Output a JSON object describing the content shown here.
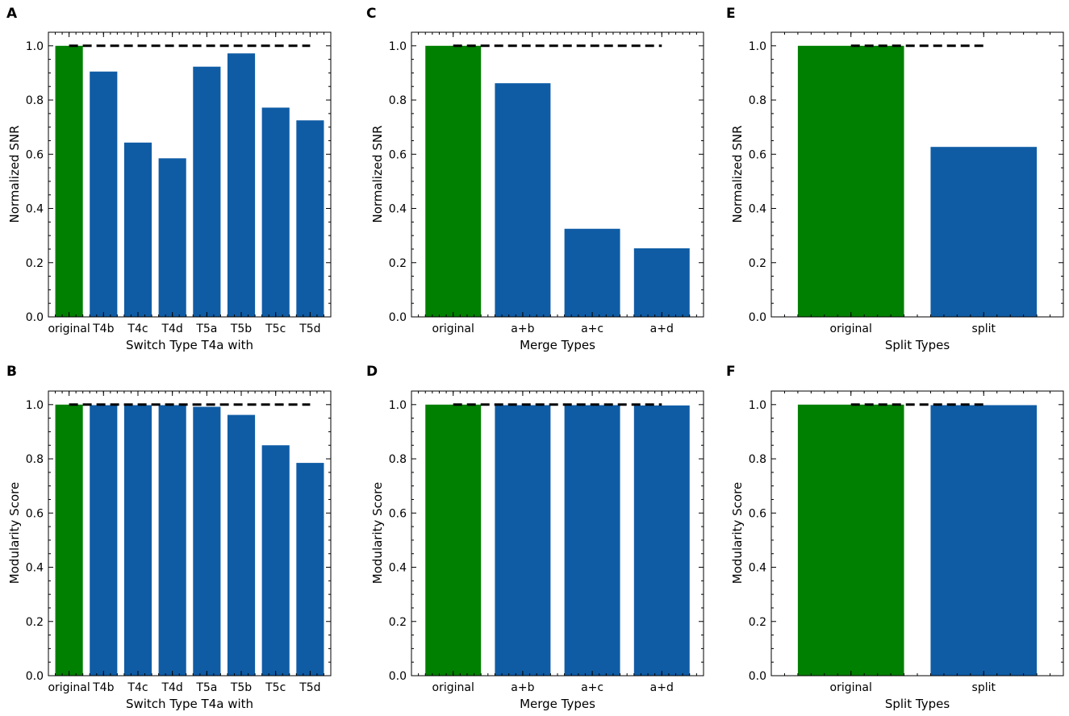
{
  "colors": {
    "original": "#008000",
    "other": "#0f5ca5",
    "reference": "#000000"
  },
  "chart_data": [
    {
      "type": "bar",
      "panel_label": "A",
      "categories": [
        "original",
        "T4b",
        "T4c",
        "T4d",
        "T5a",
        "T5b",
        "T5c",
        "T5d"
      ],
      "values": [
        1.0,
        0.905,
        0.643,
        0.585,
        0.923,
        0.972,
        0.772,
        0.725
      ],
      "reference_line": 1.0,
      "xlabel": "Switch Type T4a with",
      "ylabel": "Normalized SNR",
      "ylim": [
        0,
        1.05
      ],
      "yticks": [
        "0.0",
        "0.2",
        "0.4",
        "0.6",
        "0.8",
        "1.0"
      ]
    },
    {
      "type": "bar",
      "panel_label": "B",
      "categories": [
        "original",
        "T4b",
        "T4c",
        "T4d",
        "T5a",
        "T5b",
        "T5c",
        "T5d"
      ],
      "values": [
        1.0,
        0.998,
        0.998,
        0.998,
        0.992,
        0.962,
        0.85,
        0.785
      ],
      "reference_line": 1.0,
      "xlabel": "Switch Type T4a with",
      "ylabel": "Modularity Score",
      "ylim": [
        0,
        1.05
      ],
      "yticks": [
        "0.0",
        "0.2",
        "0.4",
        "0.6",
        "0.8",
        "1.0"
      ]
    },
    {
      "type": "bar",
      "panel_label": "C",
      "categories": [
        "original",
        "a+b",
        "a+c",
        "a+d"
      ],
      "values": [
        1.0,
        0.862,
        0.325,
        0.253
      ],
      "reference_line": 1.0,
      "xlabel": "Merge Types",
      "ylabel": "Normalized SNR",
      "ylim": [
        0,
        1.05
      ],
      "yticks": [
        "0.0",
        "0.2",
        "0.4",
        "0.6",
        "0.8",
        "1.0"
      ]
    },
    {
      "type": "bar",
      "panel_label": "D",
      "categories": [
        "original",
        "a+b",
        "a+c",
        "a+d"
      ],
      "values": [
        1.0,
        0.998,
        0.998,
        0.997
      ],
      "reference_line": 1.0,
      "xlabel": "Merge Types",
      "ylabel": "Modularity Score",
      "ylim": [
        0,
        1.05
      ],
      "yticks": [
        "0.0",
        "0.2",
        "0.4",
        "0.6",
        "0.8",
        "1.0"
      ]
    },
    {
      "type": "bar",
      "panel_label": "E",
      "categories": [
        "original",
        "split"
      ],
      "values": [
        1.0,
        0.627
      ],
      "reference_line": 1.0,
      "xlabel": "Split Types",
      "ylabel": "Normalized SNR",
      "ylim": [
        0,
        1.05
      ],
      "yticks": [
        "0.0",
        "0.2",
        "0.4",
        "0.6",
        "0.8",
        "1.0"
      ]
    },
    {
      "type": "bar",
      "panel_label": "F",
      "categories": [
        "original",
        "split"
      ],
      "values": [
        1.0,
        0.998
      ],
      "reference_line": 1.0,
      "xlabel": "Split Types",
      "ylabel": "Modularity Score",
      "ylim": [
        0,
        1.05
      ],
      "yticks": [
        "0.0",
        "0.2",
        "0.4",
        "0.6",
        "0.8",
        "1.0"
      ]
    }
  ]
}
